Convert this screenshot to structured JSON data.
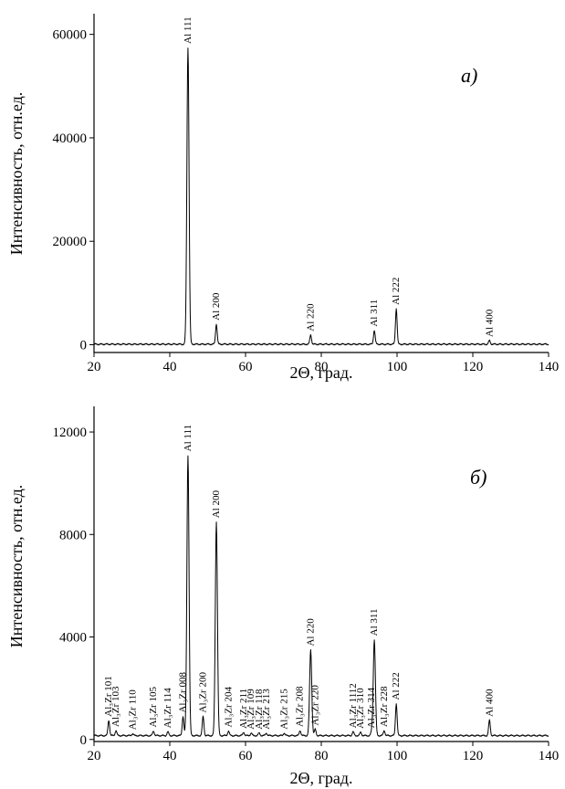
{
  "chart_data": [
    {
      "type": "line",
      "panel_label": "а)",
      "xlabel": "2Θ, град.",
      "ylabel": "Интенсивность, отн.ед.",
      "xlim": [
        20,
        140
      ],
      "ylim": [
        -1500,
        64000
      ],
      "xticks": [
        20,
        40,
        60,
        80,
        100,
        120,
        140
      ],
      "yticks": [
        0,
        20000,
        40000,
        60000
      ],
      "grid": false,
      "baseline": 100,
      "peaks": [
        {
          "label": "Al 111",
          "x": 44.8,
          "y": 57500
        },
        {
          "label": "Al 200",
          "x": 52.3,
          "y": 4000
        },
        {
          "label": "Al 220",
          "x": 77.2,
          "y": 1900
        },
        {
          "label": "Al 311",
          "x": 94.0,
          "y": 2800
        },
        {
          "label": "Al 222",
          "x": 99.8,
          "y": 7000
        },
        {
          "label": "Al 400",
          "x": 124.4,
          "y": 800
        }
      ]
    },
    {
      "type": "line",
      "panel_label": "б)",
      "xlabel": "2Θ, град.",
      "ylabel": "Интенсивность, отн.ед.",
      "xlim": [
        20,
        140
      ],
      "ylim": [
        -80,
        13000
      ],
      "xticks": [
        20,
        40,
        60,
        80,
        100,
        120,
        140
      ],
      "yticks": [
        0,
        4000,
        8000,
        12000
      ],
      "grid": false,
      "baseline": 150,
      "peaks": [
        {
          "label": "Al₃Zr 101",
          "x": 23.9,
          "y": 750
        },
        {
          "label": "Al₃Zr 103",
          "x": 25.8,
          "y": 350
        },
        {
          "label": "Al₃Zr 110",
          "x": 30.2,
          "y": 230
        },
        {
          "label": "Al₃Zr 105",
          "x": 35.7,
          "y": 330
        },
        {
          "label": "Al₃Zr 114",
          "x": 39.5,
          "y": 300
        },
        {
          "label": "Al₃Zr 008",
          "x": 43.5,
          "y": 900
        },
        {
          "label": "Al 111",
          "x": 44.8,
          "y": 11100
        },
        {
          "label": "Al₃Zr 200",
          "x": 48.8,
          "y": 900
        },
        {
          "label": "Al 200",
          "x": 52.3,
          "y": 8500
        },
        {
          "label": "Al₃Zr 204",
          "x": 55.5,
          "y": 330
        },
        {
          "label": "Al₃Zr 211",
          "x": 59.5,
          "y": 280
        },
        {
          "label": "Al₃Zr 109",
          "x": 61.5,
          "y": 250
        },
        {
          "label": "Al₃Zr 118",
          "x": 63.6,
          "y": 250
        },
        {
          "label": "Al₃Zr 213",
          "x": 65.5,
          "y": 250
        },
        {
          "label": "Al₃Zr 215",
          "x": 70.2,
          "y": 250
        },
        {
          "label": "Al₃Zr 208",
          "x": 74.4,
          "y": 350
        },
        {
          "label": "Al 220",
          "x": 77.2,
          "y": 3500
        },
        {
          "label": "Al₃Zr 220",
          "x": 78.4,
          "y": 400
        },
        {
          "label": "Al₃Zr 1112",
          "x": 88.4,
          "y": 300
        },
        {
          "label": "Al₃Zr 310",
          "x": 90.4,
          "y": 280
        },
        {
          "label": "Al₃Zr 314",
          "x": 93.3,
          "y": 300
        },
        {
          "label": "Al 311",
          "x": 94.0,
          "y": 3900
        },
        {
          "label": "Al₃Zr 228",
          "x": 96.6,
          "y": 350
        },
        {
          "label": "Al 222",
          "x": 99.8,
          "y": 1400
        },
        {
          "label": "Al 400",
          "x": 124.4,
          "y": 750
        }
      ]
    }
  ]
}
